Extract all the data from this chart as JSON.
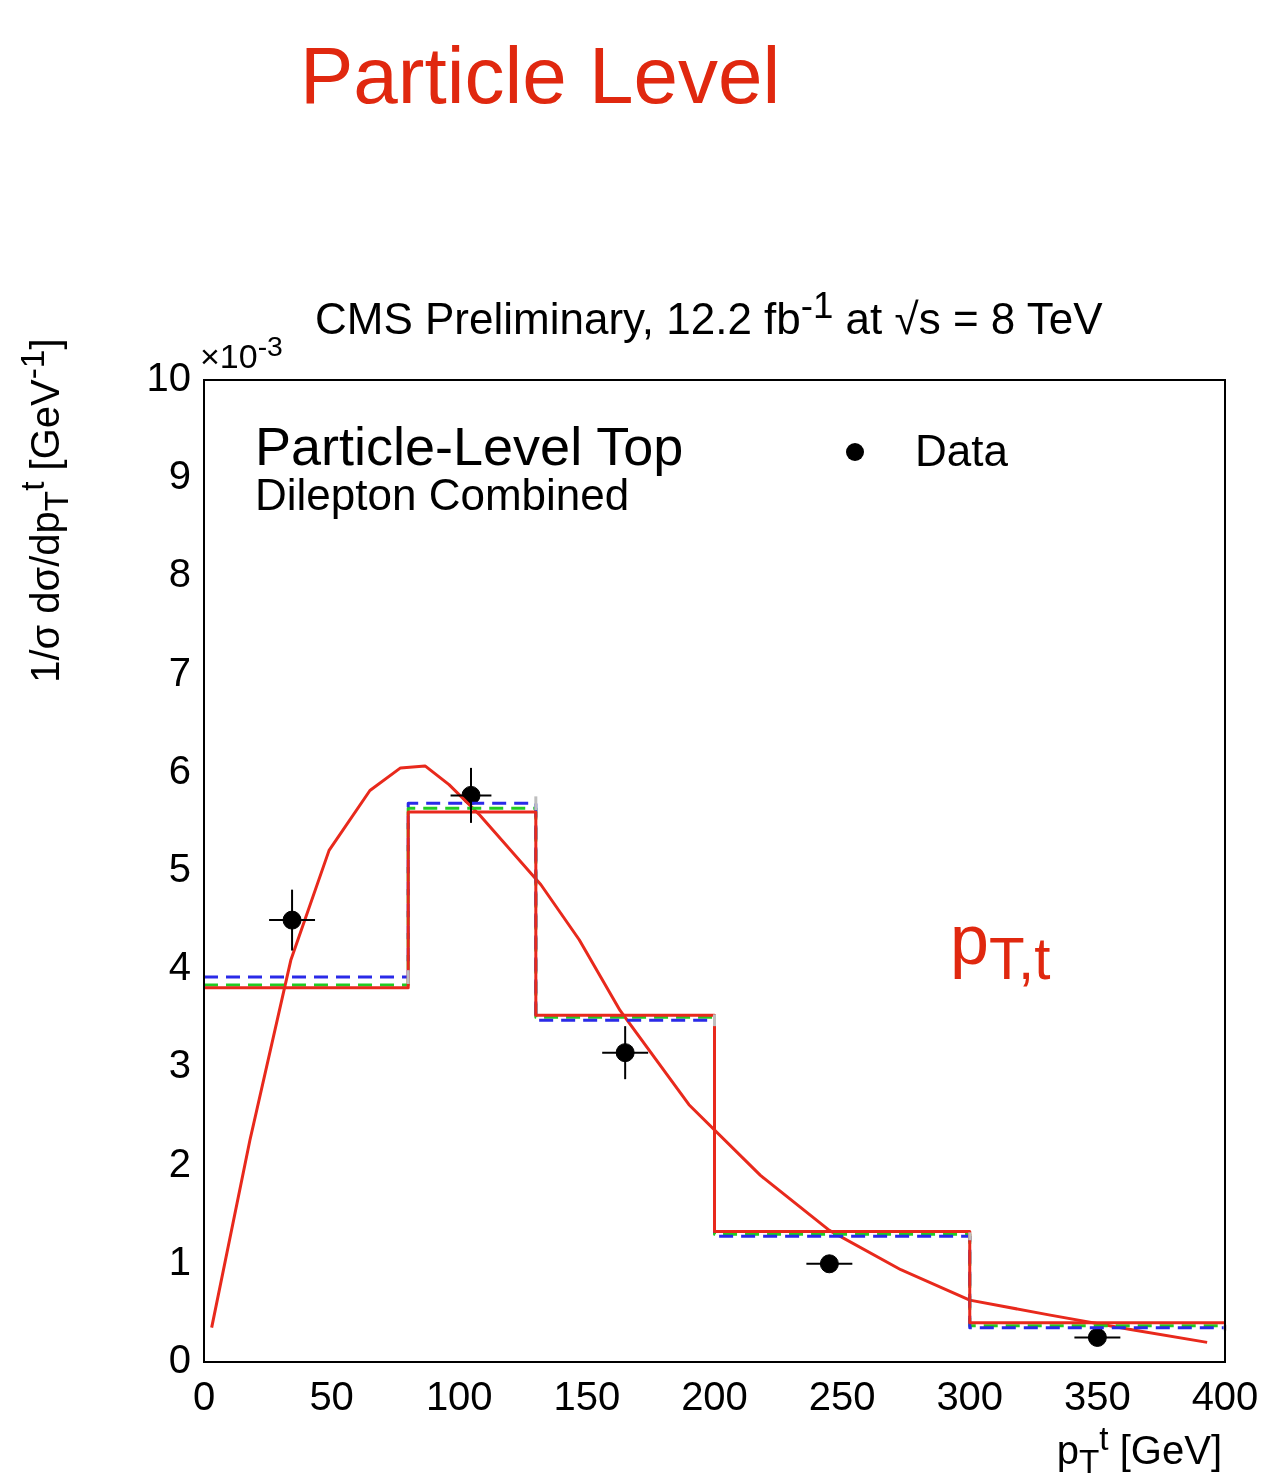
{
  "chart_data": {
    "type": "histogram",
    "title": "Particle Level",
    "subtitle": "CMS Preliminary, 12.2 fb$^{-1}$ at √s =  8 TeV",
    "xlabel": "p$_{T}$$^{t}$ [GeV]",
    "ylabel": "1/σ dσ/dp$_{T}$$^{t}$ [GeV$^{-1}$]",
    "annotations": [
      "×10$^{-3}$",
      "Particle-Level Top",
      "Dilepton Combined",
      "p$_{T,t}$"
    ],
    "bins": [
      0,
      80,
      130,
      200,
      300,
      400
    ],
    "series": [
      {
        "color": "#e8291c",
        "values": [
          3.81,
          5.6,
          3.53,
          1.33,
          0.4
        ]
      },
      {
        "color": "#2a2ae8",
        "line_style": "dashed",
        "values": [
          3.92,
          5.69,
          3.48,
          1.28,
          0.35
        ],
        "errors": [
          [
            3.85,
            3.99
          ],
          [
            5.62,
            5.76
          ],
          [
            3.42,
            3.54
          ],
          [
            1.24,
            1.32
          ],
          [
            0.32,
            0.38
          ]
        ]
      },
      {
        "color": "#22cc22",
        "line_style": "dashed",
        "values": [
          3.84,
          5.64,
          3.51,
          1.3,
          0.37
        ]
      },
      {
        "type": "line",
        "color": "#e8291c",
        "x": [
          3,
          18,
          34,
          49,
          65,
          77,
          86.6,
          96,
          108,
          132,
          147,
          163,
          190,
          218,
          245,
          273,
          300,
          331,
          363,
          393
        ],
        "values": [
          0.35,
          2.26,
          4.09,
          5.21,
          5.82,
          6.05,
          6.07,
          5.88,
          5.57,
          4.86,
          4.3,
          3.58,
          2.62,
          1.9,
          1.34,
          0.94,
          0.63,
          0.48,
          0.33,
          0.2
        ]
      },
      {
        "type": "scatter",
        "name": "Data",
        "color": "#000000",
        "marker": "circle",
        "x": [
          34.5,
          104.6,
          165,
          245,
          350
        ],
        "values": [
          4.5,
          5.77,
          3.15,
          1.0,
          0.25
        ],
        "errors": [
          0.31,
          0.28,
          0.27,
          0.05,
          0.05
        ],
        "xerrors": [
          9,
          8,
          9,
          9,
          9
        ]
      }
    ],
    "xlim": [
      0,
      400
    ],
    "xticks": [
      0,
      50,
      100,
      150,
      200,
      250,
      300,
      350,
      400
    ],
    "ylim": [
      0,
      10
    ],
    "yticks": [
      0,
      1,
      2,
      3,
      4,
      5,
      6,
      7,
      8,
      9,
      10
    ],
    "grid": false,
    "legend": "top right"
  }
}
